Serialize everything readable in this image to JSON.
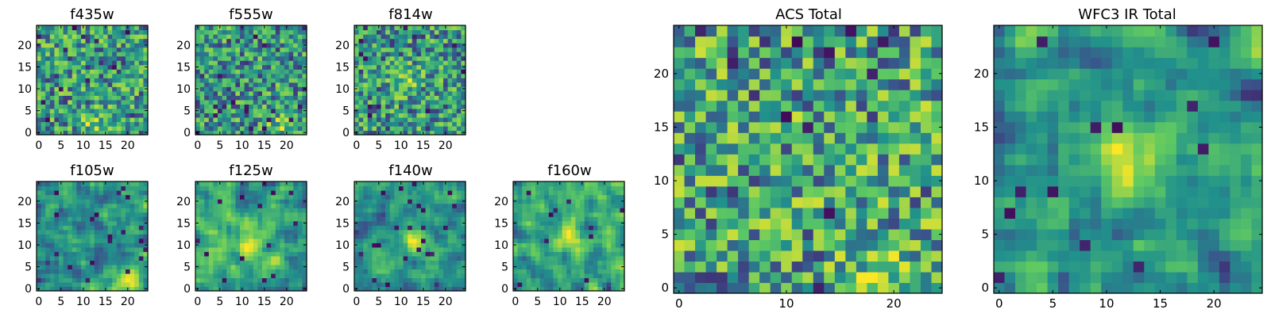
{
  "figure": {
    "background": "#ffffff"
  },
  "colormap": [
    "#440154",
    "#3b528b",
    "#21918c",
    "#5ec962",
    "#fde725"
  ],
  "chart_data": [
    {
      "type": "heatmap",
      "title": "f435w",
      "grid": [
        25,
        25
      ],
      "xticks": [
        0,
        5,
        10,
        15,
        20
      ],
      "yticks": [
        0,
        5,
        10,
        15,
        20
      ],
      "xlim": [
        -0.5,
        24.5
      ],
      "ylim": [
        -0.5,
        24.5
      ],
      "texture": "noise",
      "peak": [
        13,
        2
      ],
      "seed": 11
    },
    {
      "type": "heatmap",
      "title": "f555w",
      "grid": [
        25,
        25
      ],
      "xticks": [
        0,
        5,
        10,
        15,
        20
      ],
      "yticks": [
        0,
        5,
        10,
        15,
        20
      ],
      "xlim": [
        -0.5,
        24.5
      ],
      "ylim": [
        -0.5,
        24.5
      ],
      "texture": "noise",
      "peak": [
        19,
        2
      ],
      "seed": 23
    },
    {
      "type": "heatmap",
      "title": "f814w",
      "grid": [
        25,
        25
      ],
      "xticks": [
        0,
        5,
        10,
        15,
        20
      ],
      "yticks": [
        0,
        5,
        10,
        15,
        20
      ],
      "xlim": [
        -0.5,
        24.5
      ],
      "ylim": [
        -0.5,
        24.5
      ],
      "texture": "noise",
      "peak": [
        11,
        12
      ],
      "seed": 37
    },
    {
      "type": "heatmap",
      "title": "f105w",
      "grid": [
        25,
        25
      ],
      "xticks": [
        0,
        5,
        10,
        15,
        20
      ],
      "yticks": [
        0,
        5,
        10,
        15,
        20
      ],
      "xlim": [
        -0.5,
        24.5
      ],
      "ylim": [
        -0.5,
        24.5
      ],
      "texture": "smooth",
      "peak": [
        20,
        2
      ],
      "seed": 41
    },
    {
      "type": "heatmap",
      "title": "f125w",
      "grid": [
        25,
        25
      ],
      "xticks": [
        0,
        5,
        10,
        15,
        20
      ],
      "yticks": [
        0,
        5,
        10,
        15,
        20
      ],
      "xlim": [
        -0.5,
        24.5
      ],
      "ylim": [
        -0.5,
        24.5
      ],
      "texture": "smooth",
      "peak": [
        12,
        10
      ],
      "seed": 53
    },
    {
      "type": "heatmap",
      "title": "f140w",
      "grid": [
        25,
        25
      ],
      "xticks": [
        0,
        5,
        10,
        15,
        20
      ],
      "yticks": [
        0,
        5,
        10,
        15,
        20
      ],
      "xlim": [
        -0.5,
        24.5
      ],
      "ylim": [
        -0.5,
        24.5
      ],
      "texture": "smooth",
      "peak": [
        13,
        11
      ],
      "seed": 67
    },
    {
      "type": "heatmap",
      "title": "f160w",
      "grid": [
        25,
        25
      ],
      "xticks": [
        0,
        5,
        10,
        15,
        20
      ],
      "yticks": [
        0,
        5,
        10,
        15,
        20
      ],
      "xlim": [
        -0.5,
        24.5
      ],
      "ylim": [
        -0.5,
        24.5
      ],
      "texture": "smooth",
      "peak": [
        12,
        12
      ],
      "seed": 79
    },
    {
      "type": "heatmap",
      "title": "ACS Total",
      "grid": [
        25,
        25
      ],
      "xticks": [
        0,
        10,
        20
      ],
      "yticks": [
        0,
        5,
        10,
        15,
        20
      ],
      "xlim": [
        -0.5,
        24.5
      ],
      "ylim": [
        -0.5,
        24.5
      ],
      "texture": "noise",
      "peak": [
        19,
        1
      ],
      "seed": 97
    },
    {
      "type": "heatmap",
      "title": "WFC3 IR Total",
      "grid": [
        25,
        25
      ],
      "xticks": [
        0,
        5,
        10,
        15,
        20
      ],
      "yticks": [
        0,
        5,
        10,
        15,
        20
      ],
      "xlim": [
        -0.5,
        24.5
      ],
      "ylim": [
        -0.5,
        24.5
      ],
      "texture": "smooth",
      "peak": [
        12,
        12
      ],
      "seed": 113
    }
  ]
}
